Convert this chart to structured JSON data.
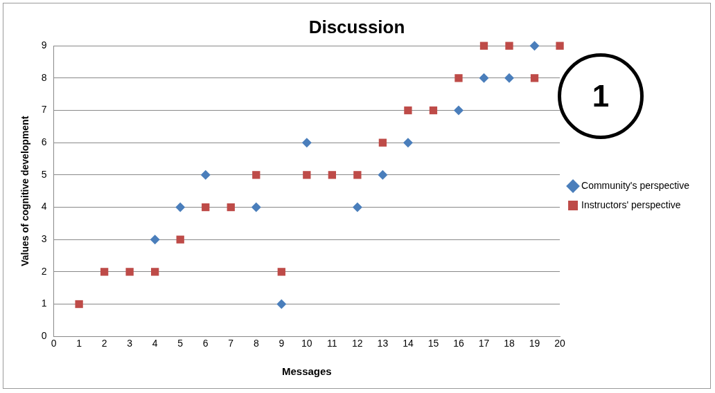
{
  "chart_data": {
    "type": "scatter",
    "title": "Discussion",
    "xlabel": "Messages",
    "ylabel": "Values of cognitive development",
    "x": [
      1,
      2,
      3,
      4,
      5,
      6,
      7,
      8,
      9,
      10,
      11,
      12,
      13,
      14,
      15,
      16,
      17,
      18,
      19,
      20
    ],
    "series": [
      {
        "name": "Community's perspective",
        "color": "#4a7ebb",
        "marker": "diamond",
        "values": [
          null,
          null,
          null,
          3,
          4,
          5,
          null,
          4,
          1,
          6,
          null,
          4,
          5,
          6,
          null,
          7,
          8,
          8,
          9,
          null
        ]
      },
      {
        "name": "Instructors' perspective",
        "color": "#be4b48",
        "marker": "square",
        "values": [
          1,
          2,
          2,
          2,
          3,
          4,
          4,
          5,
          2,
          5,
          5,
          5,
          6,
          7,
          7,
          8,
          9,
          9,
          8,
          9
        ]
      }
    ],
    "xlim": [
      0,
      20
    ],
    "xticks": [
      0,
      1,
      2,
      3,
      4,
      5,
      6,
      7,
      8,
      9,
      10,
      11,
      12,
      13,
      14,
      15,
      16,
      17,
      18,
      19,
      20
    ],
    "ylim": [
      0,
      9
    ],
    "yticks": [
      0,
      1,
      2,
      3,
      4,
      5,
      6,
      7,
      8,
      9
    ],
    "grid": "y",
    "legend": "right",
    "annotations": [
      "1"
    ]
  }
}
